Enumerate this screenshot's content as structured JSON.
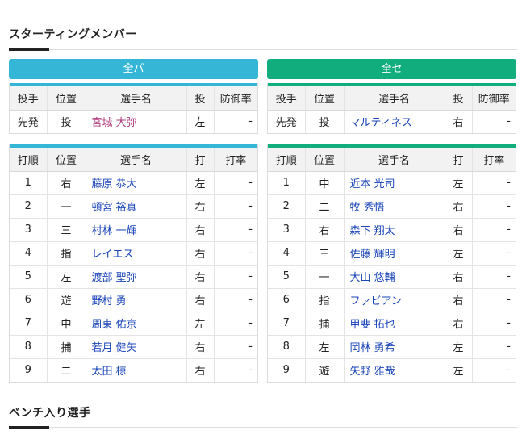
{
  "starting_title": "スターティングメンバー",
  "bench_title": "ベンチ入り選手",
  "colors": {
    "pacific": "#35b6d6",
    "central": "#12ad7d"
  },
  "pitcher_headers": [
    "投手",
    "位置",
    "選手名",
    "投",
    "防御率"
  ],
  "lineup_headers": [
    "打順",
    "位置",
    "選手名",
    "打",
    "打率"
  ],
  "left": {
    "team": "全パ",
    "pitcher": {
      "role": "先発",
      "pos": "投",
      "name": "宮城 大弥",
      "hand": "左",
      "era": "-"
    },
    "lineup": [
      {
        "order": "1",
        "pos": "右",
        "name": "藤原 恭大",
        "hand": "左",
        "avg": "-"
      },
      {
        "order": "2",
        "pos": "一",
        "name": "頓宮 裕真",
        "hand": "右",
        "avg": "-"
      },
      {
        "order": "3",
        "pos": "三",
        "name": "村林 一輝",
        "hand": "右",
        "avg": "-"
      },
      {
        "order": "4",
        "pos": "指",
        "name": "レイエス",
        "hand": "右",
        "avg": "-"
      },
      {
        "order": "5",
        "pos": "左",
        "name": "渡部 聖弥",
        "hand": "右",
        "avg": "-"
      },
      {
        "order": "6",
        "pos": "遊",
        "name": "野村 勇",
        "hand": "右",
        "avg": "-"
      },
      {
        "order": "7",
        "pos": "中",
        "name": "周東 佑京",
        "hand": "左",
        "avg": "-"
      },
      {
        "order": "8",
        "pos": "捕",
        "name": "若月 健矢",
        "hand": "右",
        "avg": "-"
      },
      {
        "order": "9",
        "pos": "二",
        "name": "太田 椋",
        "hand": "右",
        "avg": "-"
      }
    ]
  },
  "right": {
    "team": "全セ",
    "pitcher": {
      "role": "先発",
      "pos": "投",
      "name": "マルティネス",
      "hand": "右",
      "era": "-"
    },
    "lineup": [
      {
        "order": "1",
        "pos": "中",
        "name": "近本 光司",
        "hand": "左",
        "avg": "-"
      },
      {
        "order": "2",
        "pos": "二",
        "name": "牧 秀悟",
        "hand": "右",
        "avg": "-"
      },
      {
        "order": "3",
        "pos": "右",
        "name": "森下 翔太",
        "hand": "右",
        "avg": "-"
      },
      {
        "order": "4",
        "pos": "三",
        "name": "佐藤 輝明",
        "hand": "左",
        "avg": "-"
      },
      {
        "order": "5",
        "pos": "一",
        "name": "大山 悠輔",
        "hand": "右",
        "avg": "-"
      },
      {
        "order": "6",
        "pos": "指",
        "name": "ファビアン",
        "hand": "右",
        "avg": "-"
      },
      {
        "order": "7",
        "pos": "捕",
        "name": "甲斐 拓也",
        "hand": "右",
        "avg": "-"
      },
      {
        "order": "8",
        "pos": "左",
        "name": "岡林 勇希",
        "hand": "左",
        "avg": "-"
      },
      {
        "order": "9",
        "pos": "遊",
        "name": "矢野 雅哉",
        "hand": "左",
        "avg": "-"
      }
    ]
  }
}
